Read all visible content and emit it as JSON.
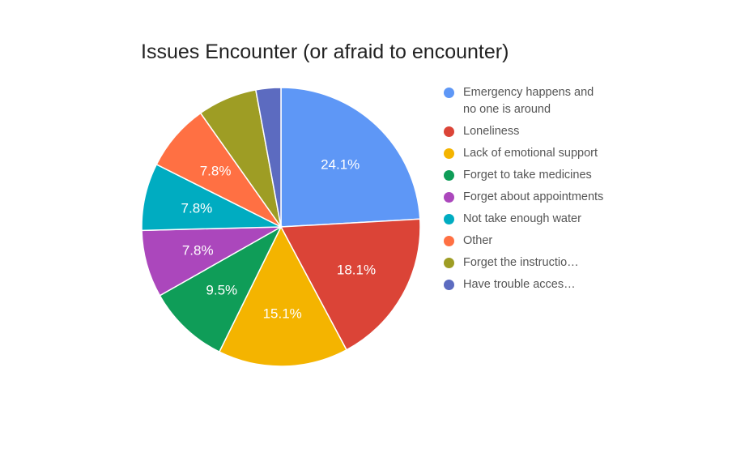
{
  "chart_data": {
    "type": "pie",
    "title": "Issues Encounter (or afraid to encounter)",
    "categories": [
      "Emergency happens and no one is around",
      "Loneliness",
      "Lack of emotional support",
      "Forget to take medicines",
      "Forget about appointments",
      "Not take enough water",
      "Other",
      "Forget the instructio…",
      "Have trouble acces…"
    ],
    "values": [
      24.1,
      18.1,
      15.1,
      9.5,
      7.8,
      7.8,
      7.8,
      6.9,
      2.9
    ],
    "data_labels": [
      "24.1%",
      "18.1%",
      "15.1%",
      "9.5%",
      "7.8%",
      "7.8%",
      "7.8%",
      "",
      ""
    ],
    "colors": [
      "#5E97F6",
      "#DB4437",
      "#F4B400",
      "#0F9D58",
      "#AB47BC",
      "#00ACC1",
      "#FF7043",
      "#9E9D24",
      "#5C6BC0"
    ],
    "legend_position": "right"
  }
}
